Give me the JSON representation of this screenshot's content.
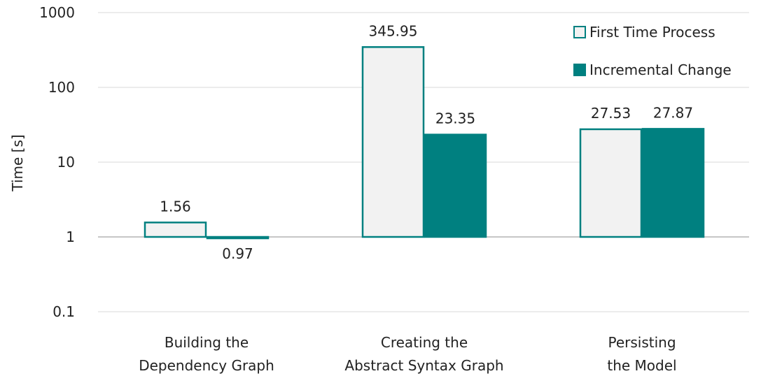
{
  "chart_data": {
    "type": "bar",
    "ylabel": "Time [s]",
    "y_scale": "log",
    "ylim": [
      0.1,
      1000
    ],
    "yticks": [
      {
        "value": 0.1,
        "label": "0.1"
      },
      {
        "value": 1,
        "label": "1"
      },
      {
        "value": 10,
        "label": "10"
      },
      {
        "value": 100,
        "label": "100"
      },
      {
        "value": 1000,
        "label": "1000"
      }
    ],
    "categories": [
      [
        "Building the",
        "Dependency Graph"
      ],
      [
        "Creating the",
        "Abstract Syntax Graph"
      ],
      [
        "Persisting",
        "the Model"
      ]
    ],
    "series": [
      {
        "name": "First Time Process",
        "values": [
          1.56,
          345.95,
          27.53
        ],
        "labels": [
          "1.56",
          "345.95",
          "27.53"
        ],
        "fill": "#f2f2f2",
        "stroke": "#008080"
      },
      {
        "name": "Incremental Change",
        "values": [
          0.97,
          23.35,
          27.87
        ],
        "labels": [
          "0.97",
          "23.35",
          "27.87"
        ],
        "fill": "#008080",
        "stroke": "#008080"
      }
    ],
    "gridlines": true,
    "legend_position": "top-right"
  }
}
